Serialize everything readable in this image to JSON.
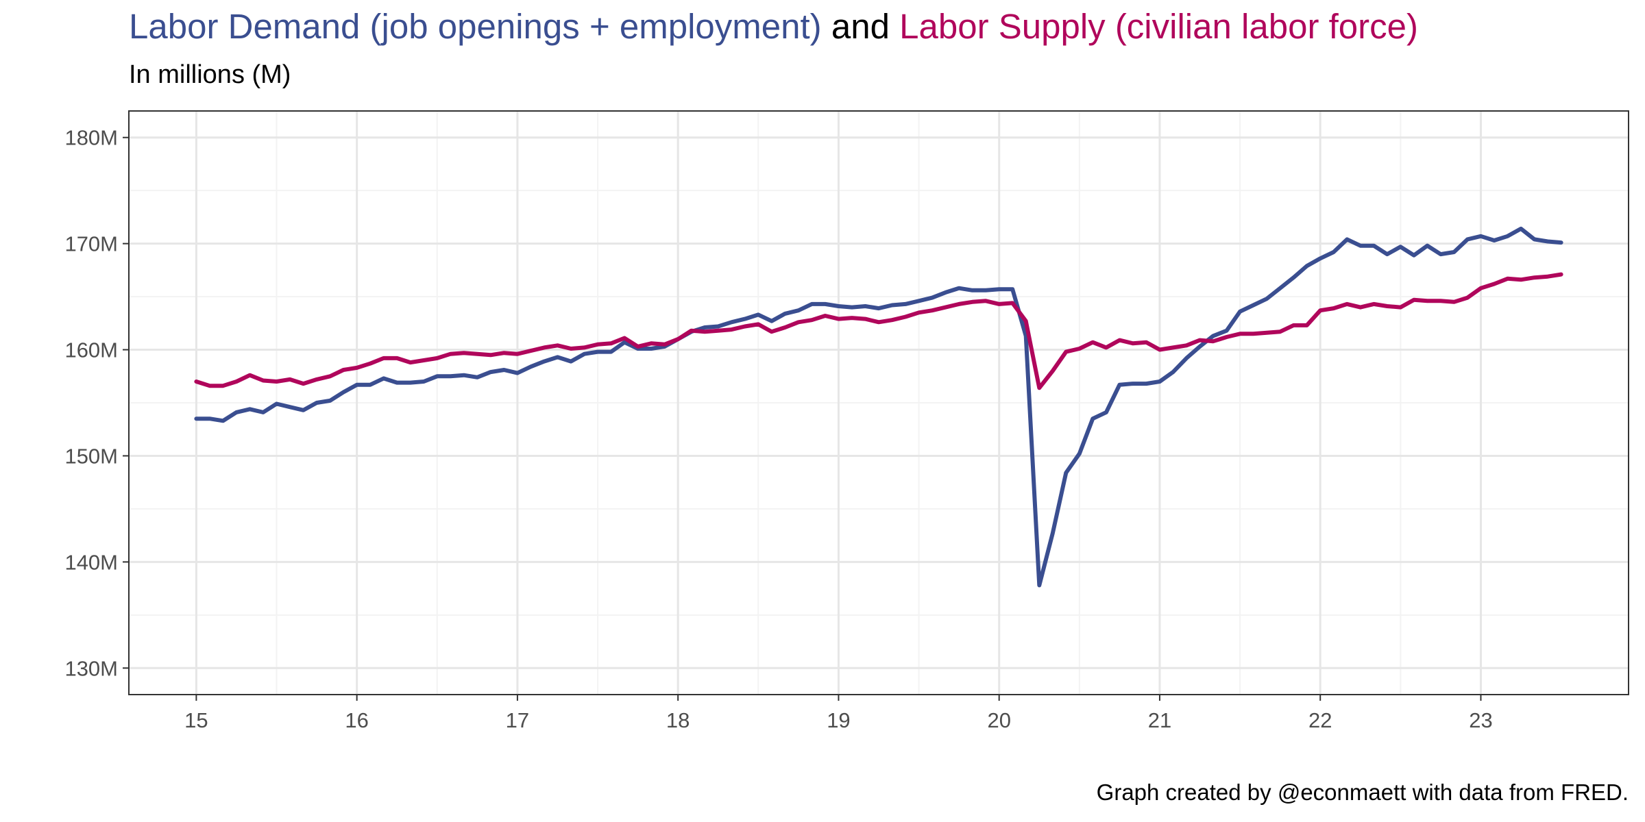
{
  "title": {
    "part1": "Labor Demand (job openings + employment)",
    "part2": " and ",
    "part3": "Labor Supply (civilian labor force)"
  },
  "subtitle": "In millions (M)",
  "caption": "Graph created by @econmaett with data from FRED.",
  "colors": {
    "demand": "#3A4E90",
    "supply": "#B0065B",
    "grid_major": "#E6E6E6",
    "grid_minor": "#F3F3F3",
    "axis_text": "#4D4D4D",
    "panel_border": "#333333"
  },
  "chart_data": {
    "type": "line",
    "title": "Labor Demand (job openings + employment) and Labor Supply (civilian labor force)",
    "subtitle": "In millions (M)",
    "xlabel": "",
    "ylabel": "",
    "xlim": [
      14.58,
      23.92
    ],
    "ylim": [
      127.5,
      182.5
    ],
    "x_ticks": [
      15,
      16,
      17,
      18,
      19,
      20,
      21,
      22,
      23
    ],
    "x_tick_labels": [
      "15",
      "16",
      "17",
      "18",
      "19",
      "20",
      "21",
      "22",
      "23"
    ],
    "y_ticks": [
      130,
      140,
      150,
      160,
      170,
      180
    ],
    "y_tick_labels": [
      "130M",
      "140M",
      "150M",
      "160M",
      "170M",
      "180M"
    ],
    "grid": true,
    "x": [
      15.0,
      15.0833,
      15.1667,
      15.25,
      15.3333,
      15.4167,
      15.5,
      15.5833,
      15.6667,
      15.75,
      15.8333,
      15.9167,
      16.0,
      16.0833,
      16.1667,
      16.25,
      16.3333,
      16.4167,
      16.5,
      16.5833,
      16.6667,
      16.75,
      16.8333,
      16.9167,
      17.0,
      17.0833,
      17.1667,
      17.25,
      17.3333,
      17.4167,
      17.5,
      17.5833,
      17.6667,
      17.75,
      17.8333,
      17.9167,
      18.0,
      18.0833,
      18.1667,
      18.25,
      18.3333,
      18.4167,
      18.5,
      18.5833,
      18.6667,
      18.75,
      18.8333,
      18.9167,
      19.0,
      19.0833,
      19.1667,
      19.25,
      19.3333,
      19.4167,
      19.5,
      19.5833,
      19.6667,
      19.75,
      19.8333,
      19.9167,
      20.0,
      20.0833,
      20.1667,
      20.25,
      20.3333,
      20.4167,
      20.5,
      20.5833,
      20.6667,
      20.75,
      20.8333,
      20.9167,
      21.0,
      21.0833,
      21.1667,
      21.25,
      21.3333,
      21.4167,
      21.5,
      21.5833,
      21.6667,
      21.75,
      21.8333,
      21.9167,
      22.0,
      22.0833,
      22.1667,
      22.25,
      22.3333,
      22.4167,
      22.5,
      22.5833,
      22.6667,
      22.75,
      22.8333,
      22.9167,
      23.0,
      23.0833,
      23.1667,
      23.25,
      23.3333,
      23.4167,
      23.5
    ],
    "series": [
      {
        "name": "Labor Demand (job openings + employment)",
        "color": "#3A4E90",
        "values": [
          153.5,
          153.5,
          153.3,
          154.1,
          154.4,
          154.1,
          154.9,
          154.6,
          154.3,
          155.0,
          155.2,
          156.0,
          156.7,
          156.7,
          157.3,
          156.9,
          156.9,
          157.0,
          157.5,
          157.5,
          157.6,
          157.4,
          157.9,
          158.1,
          157.8,
          158.4,
          158.9,
          159.3,
          158.9,
          159.6,
          159.8,
          159.8,
          160.7,
          160.1,
          160.1,
          160.3,
          161.0,
          161.7,
          162.1,
          162.2,
          162.6,
          162.9,
          163.3,
          162.7,
          163.4,
          163.7,
          164.3,
          164.3,
          164.1,
          164.0,
          164.1,
          163.9,
          164.2,
          164.3,
          164.6,
          164.9,
          165.4,
          165.8,
          165.6,
          165.6,
          165.7,
          165.7,
          161.3,
          137.8,
          142.7,
          148.4,
          150.2,
          153.5,
          154.1,
          156.7,
          156.8,
          156.8,
          157.0,
          157.9,
          159.2,
          160.3,
          161.3,
          161.8,
          163.6,
          164.2,
          164.8,
          165.8,
          166.8,
          167.9,
          168.6,
          169.2,
          170.4,
          169.8,
          169.8,
          169.0,
          169.7,
          168.9,
          169.8,
          169.0,
          169.2,
          170.4,
          170.7,
          170.3,
          170.7,
          171.4,
          170.4,
          170.2,
          170.1
        ]
      },
      {
        "name": "Labor Supply (civilian labor force)",
        "color": "#B0065B",
        "values": [
          157.0,
          156.6,
          156.6,
          157.0,
          157.6,
          157.1,
          157.0,
          157.2,
          156.8,
          157.2,
          157.5,
          158.1,
          158.3,
          158.7,
          159.2,
          159.2,
          158.8,
          159.0,
          159.2,
          159.6,
          159.7,
          159.6,
          159.5,
          159.7,
          159.6,
          159.9,
          160.2,
          160.4,
          160.1,
          160.2,
          160.5,
          160.6,
          161.1,
          160.3,
          160.6,
          160.5,
          161.0,
          161.8,
          161.7,
          161.8,
          161.9,
          162.2,
          162.4,
          161.7,
          162.1,
          162.6,
          162.8,
          163.2,
          162.9,
          163.0,
          162.9,
          162.6,
          162.8,
          163.1,
          163.5,
          163.7,
          164.0,
          164.3,
          164.5,
          164.6,
          164.3,
          164.4,
          162.7,
          156.4,
          158.0,
          159.8,
          160.1,
          160.7,
          160.2,
          160.9,
          160.6,
          160.7,
          160.0,
          160.2,
          160.4,
          160.9,
          160.8,
          161.2,
          161.5,
          161.5,
          161.6,
          161.7,
          162.3,
          162.3,
          163.7,
          163.9,
          164.3,
          164.0,
          164.3,
          164.1,
          164.0,
          164.7,
          164.6,
          164.6,
          164.5,
          164.9,
          165.8,
          166.2,
          166.7,
          166.6,
          166.8,
          166.9,
          167.1
        ]
      }
    ]
  }
}
